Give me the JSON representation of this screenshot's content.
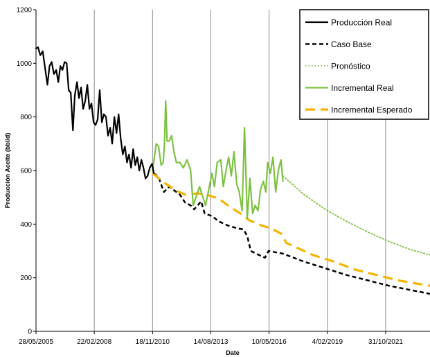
{
  "chart_data": {
    "type": "line",
    "xlabel": "Date",
    "ylabel": "Producción Aceite (bbl/d)",
    "ylim": [
      0,
      1200
    ],
    "yticks": [
      "0",
      "200",
      "400",
      "600",
      "800",
      "1000",
      "1200"
    ],
    "xlim": [
      "2005-05-28",
      "2023-12-01"
    ],
    "xticks": [
      {
        "date": "2005-05-28",
        "label": "28/05/2005"
      },
      {
        "date": "2008-02-22",
        "label": "22/02/2008"
      },
      {
        "date": "2010-11-18",
        "label": "18/11/2010"
      },
      {
        "date": "2013-08-14",
        "label": "14/08/2013"
      },
      {
        "date": "2016-05-10",
        "label": "10/05/2016"
      },
      {
        "date": "2019-02-04",
        "label": "4/02/2019"
      },
      {
        "date": "2021-10-31",
        "label": "31/10/2021"
      }
    ],
    "grid": "vertical",
    "legend_position": "top-right",
    "series": [
      {
        "name": "Producción Real",
        "color": "#000000",
        "style": "solid",
        "points": [
          [
            "2005-05-28",
            1055
          ],
          [
            "2005-07-01",
            1060
          ],
          [
            "2005-08-10",
            1030
          ],
          [
            "2005-09-20",
            1045
          ],
          [
            "2005-11-01",
            980
          ],
          [
            "2005-12-10",
            920
          ],
          [
            "2006-01-15",
            990
          ],
          [
            "2006-02-20",
            1005
          ],
          [
            "2006-04-01",
            960
          ],
          [
            "2006-05-10",
            975
          ],
          [
            "2006-06-15",
            930
          ],
          [
            "2006-07-20",
            990
          ],
          [
            "2006-08-25",
            975
          ],
          [
            "2006-10-01",
            1005
          ],
          [
            "2006-11-05",
            1000
          ],
          [
            "2006-12-10",
            900
          ],
          [
            "2007-01-15",
            890
          ],
          [
            "2007-02-20",
            750
          ],
          [
            "2007-03-25",
            880
          ],
          [
            "2007-05-01",
            930
          ],
          [
            "2007-06-05",
            870
          ],
          [
            "2007-07-10",
            910
          ],
          [
            "2007-08-15",
            830
          ],
          [
            "2007-09-20",
            860
          ],
          [
            "2007-10-25",
            920
          ],
          [
            "2007-12-01",
            830
          ],
          [
            "2008-01-05",
            850
          ],
          [
            "2008-02-10",
            780
          ],
          [
            "2008-03-15",
            770
          ],
          [
            "2008-04-20",
            790
          ],
          [
            "2008-05-25",
            900
          ],
          [
            "2008-07-01",
            780
          ],
          [
            "2008-08-05",
            810
          ],
          [
            "2008-09-10",
            800
          ],
          [
            "2008-10-15",
            730
          ],
          [
            "2008-11-20",
            760
          ],
          [
            "2008-12-25",
            700
          ],
          [
            "2009-02-01",
            800
          ],
          [
            "2009-03-10",
            740
          ],
          [
            "2009-04-15",
            810
          ],
          [
            "2009-05-20",
            720
          ],
          [
            "2009-06-25",
            660
          ],
          [
            "2009-08-01",
            690
          ],
          [
            "2009-09-05",
            630
          ],
          [
            "2009-10-10",
            660
          ],
          [
            "2009-11-15",
            610
          ],
          [
            "2009-12-20",
            680
          ],
          [
            "2010-01-25",
            620
          ],
          [
            "2010-03-01",
            650
          ],
          [
            "2010-04-05",
            600
          ],
          [
            "2010-05-10",
            640
          ],
          [
            "2010-06-15",
            610
          ],
          [
            "2010-07-20",
            570
          ],
          [
            "2010-08-25",
            580
          ],
          [
            "2010-10-01",
            610
          ],
          [
            "2010-11-10",
            625
          ],
          [
            "2010-12-10",
            590
          ]
        ]
      },
      {
        "name": "Caso Base",
        "color": "#000000",
        "style": "dashed",
        "points": [
          [
            "2010-12-10",
            590
          ],
          [
            "2011-03-01",
            575
          ],
          [
            "2011-06-01",
            520
          ],
          [
            "2011-09-01",
            540
          ],
          [
            "2011-12-01",
            525
          ],
          [
            "2012-03-01",
            510
          ],
          [
            "2012-06-01",
            480
          ],
          [
            "2012-09-01",
            470
          ],
          [
            "2012-11-01",
            455
          ],
          [
            "2013-01-01",
            470
          ],
          [
            "2013-03-01",
            485
          ],
          [
            "2013-05-01",
            440
          ],
          [
            "2013-09-01",
            430
          ],
          [
            "2014-01-01",
            410
          ],
          [
            "2014-06-01",
            395
          ],
          [
            "2014-11-01",
            385
          ],
          [
            "2015-03-01",
            380
          ],
          [
            "2015-05-01",
            355
          ],
          [
            "2015-07-01",
            300
          ],
          [
            "2015-10-01",
            290
          ],
          [
            "2016-01-01",
            280
          ],
          [
            "2016-03-01",
            275
          ],
          [
            "2016-05-01",
            300
          ],
          [
            "2017-01-01",
            290
          ],
          [
            "2018-01-01",
            260
          ],
          [
            "2019-01-01",
            235
          ],
          [
            "2020-01-01",
            210
          ],
          [
            "2021-01-01",
            190
          ],
          [
            "2022-01-01",
            170
          ],
          [
            "2023-12-01",
            140
          ]
        ]
      },
      {
        "name": "Incremental Real",
        "color": "#7dc143",
        "style": "solid",
        "points": [
          [
            "2010-11-18",
            600
          ],
          [
            "2011-01-20",
            700
          ],
          [
            "2011-03-01",
            690
          ],
          [
            "2011-04-15",
            620
          ],
          [
            "2011-05-20",
            630
          ],
          [
            "2011-06-10",
            700
          ],
          [
            "2011-07-01",
            860
          ],
          [
            "2011-07-25",
            710
          ],
          [
            "2011-09-01",
            710
          ],
          [
            "2011-10-10",
            730
          ],
          [
            "2011-11-20",
            670
          ],
          [
            "2012-01-01",
            630
          ],
          [
            "2012-03-01",
            630
          ],
          [
            "2012-05-01",
            610
          ],
          [
            "2012-07-01",
            640
          ],
          [
            "2012-09-01",
            600
          ],
          [
            "2012-10-15",
            470
          ],
          [
            "2012-12-01",
            500
          ],
          [
            "2013-02-01",
            540
          ],
          [
            "2013-04-01",
            500
          ],
          [
            "2013-05-15",
            470
          ],
          [
            "2013-07-01",
            520
          ],
          [
            "2013-09-01",
            590
          ],
          [
            "2013-10-15",
            540
          ],
          [
            "2013-12-01",
            630
          ],
          [
            "2014-02-01",
            640
          ],
          [
            "2014-03-15",
            540
          ],
          [
            "2014-05-01",
            600
          ],
          [
            "2014-06-15",
            650
          ],
          [
            "2014-08-01",
            580
          ],
          [
            "2014-09-15",
            670
          ],
          [
            "2014-11-01",
            550
          ],
          [
            "2014-12-15",
            520
          ],
          [
            "2015-02-01",
            450
          ],
          [
            "2015-03-15",
            760
          ],
          [
            "2015-05-01",
            420
          ],
          [
            "2015-06-15",
            570
          ],
          [
            "2015-08-01",
            440
          ],
          [
            "2015-09-15",
            470
          ],
          [
            "2015-11-01",
            450
          ],
          [
            "2015-12-15",
            530
          ],
          [
            "2016-02-01",
            560
          ],
          [
            "2016-03-15",
            520
          ],
          [
            "2016-04-15",
            630
          ],
          [
            "2016-06-01",
            590
          ],
          [
            "2016-07-15",
            650
          ],
          [
            "2016-09-01",
            520
          ],
          [
            "2016-10-15",
            600
          ],
          [
            "2016-12-01",
            640
          ],
          [
            "2017-01-01",
            560
          ]
        ]
      },
      {
        "name": "Pronóstico",
        "color": "#7dc143",
        "style": "dotted",
        "points": [
          [
            "2017-01-01",
            580
          ],
          [
            "2018-01-01",
            510
          ],
          [
            "2019-01-01",
            455
          ],
          [
            "2020-01-01",
            410
          ],
          [
            "2021-01-01",
            370
          ],
          [
            "2022-01-01",
            335
          ],
          [
            "2023-01-01",
            305
          ],
          [
            "2023-12-01",
            285
          ]
        ]
      },
      {
        "name": "Incremental Esperado",
        "color": "#f5b400",
        "style": "longdash",
        "points": [
          [
            "2010-11-18",
            590
          ],
          [
            "2011-06-01",
            555
          ],
          [
            "2012-01-01",
            525
          ],
          [
            "2012-06-01",
            510
          ],
          [
            "2013-01-01",
            515
          ],
          [
            "2013-06-01",
            510
          ],
          [
            "2014-01-01",
            495
          ],
          [
            "2014-06-01",
            470
          ],
          [
            "2015-01-01",
            440
          ],
          [
            "2015-06-01",
            415
          ],
          [
            "2016-01-01",
            395
          ],
          [
            "2016-06-01",
            385
          ],
          [
            "2016-12-01",
            365
          ],
          [
            "2017-03-01",
            330
          ],
          [
            "2017-08-01",
            315
          ],
          [
            "2018-06-01",
            285
          ],
          [
            "2019-06-01",
            260
          ],
          [
            "2020-06-01",
            230
          ],
          [
            "2021-06-01",
            210
          ],
          [
            "2022-06-01",
            190
          ],
          [
            "2023-12-01",
            170
          ]
        ]
      }
    ]
  }
}
